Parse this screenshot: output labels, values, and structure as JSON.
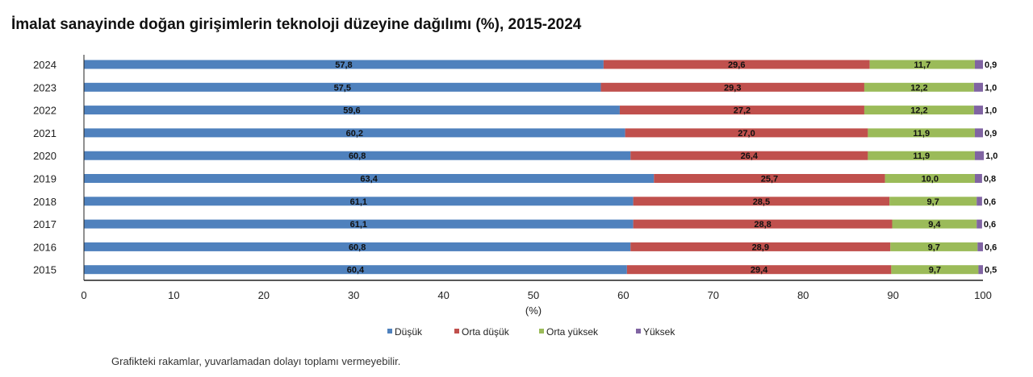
{
  "chart_data": {
    "type": "bar",
    "orientation": "horizontal",
    "stacked": true,
    "title": "İmalat sanayinde doğan girişimlerin teknoloji düzeyine dağılımı (%), 2015-2024",
    "xlabel": "(%)",
    "ylabel": "",
    "xlim": [
      0,
      100
    ],
    "xticks": [
      "0",
      "10",
      "20",
      "30",
      "40",
      "50",
      "60",
      "70",
      "80",
      "90",
      "100"
    ],
    "categories": [
      "2024",
      "2023",
      "2022",
      "2021",
      "2020",
      "2019",
      "2018",
      "2017",
      "2016",
      "2015"
    ],
    "series": [
      {
        "name": "Düşük",
        "color": "#4f81bd",
        "values": [
          57.8,
          57.5,
          59.6,
          60.2,
          60.8,
          63.4,
          61.1,
          61.1,
          60.8,
          60.4
        ],
        "labels": [
          "57,8",
          "57,5",
          "59,6",
          "60,2",
          "60,8",
          "63,4",
          "61,1",
          "61,1",
          "60,8",
          "60,4"
        ]
      },
      {
        "name": "Orta düşük",
        "color": "#c0504d",
        "values": [
          29.6,
          29.3,
          27.2,
          27.0,
          26.4,
          25.7,
          28.5,
          28.8,
          28.9,
          29.4
        ],
        "labels": [
          "29,6",
          "29,3",
          "27,2",
          "27,0",
          "26,4",
          "25,7",
          "28,5",
          "28,8",
          "28,9",
          "29,4"
        ]
      },
      {
        "name": "Orta yüksek",
        "color": "#9bbb59",
        "values": [
          11.7,
          12.2,
          12.2,
          11.9,
          11.9,
          10.0,
          9.7,
          9.4,
          9.7,
          9.7
        ],
        "labels": [
          "11,7",
          "12,2",
          "12,2",
          "11,9",
          "11,9",
          "10,0",
          "9,7",
          "9,4",
          "9,7",
          "9,7"
        ]
      },
      {
        "name": "Yüksek",
        "color": "#8064a2",
        "values": [
          0.9,
          1.0,
          1.0,
          0.9,
          1.0,
          0.8,
          0.6,
          0.6,
          0.6,
          0.5
        ],
        "labels": [
          "0,9",
          "1,0",
          "1,0",
          "0,9",
          "1,0",
          "0,8",
          "0,6",
          "0,6",
          "0,6",
          "0,5"
        ]
      }
    ],
    "legend": "bottom-center",
    "grid": false
  },
  "footnote": "Grafikteki rakamlar, yuvarlamadan dolayı toplamı vermeyebilir."
}
